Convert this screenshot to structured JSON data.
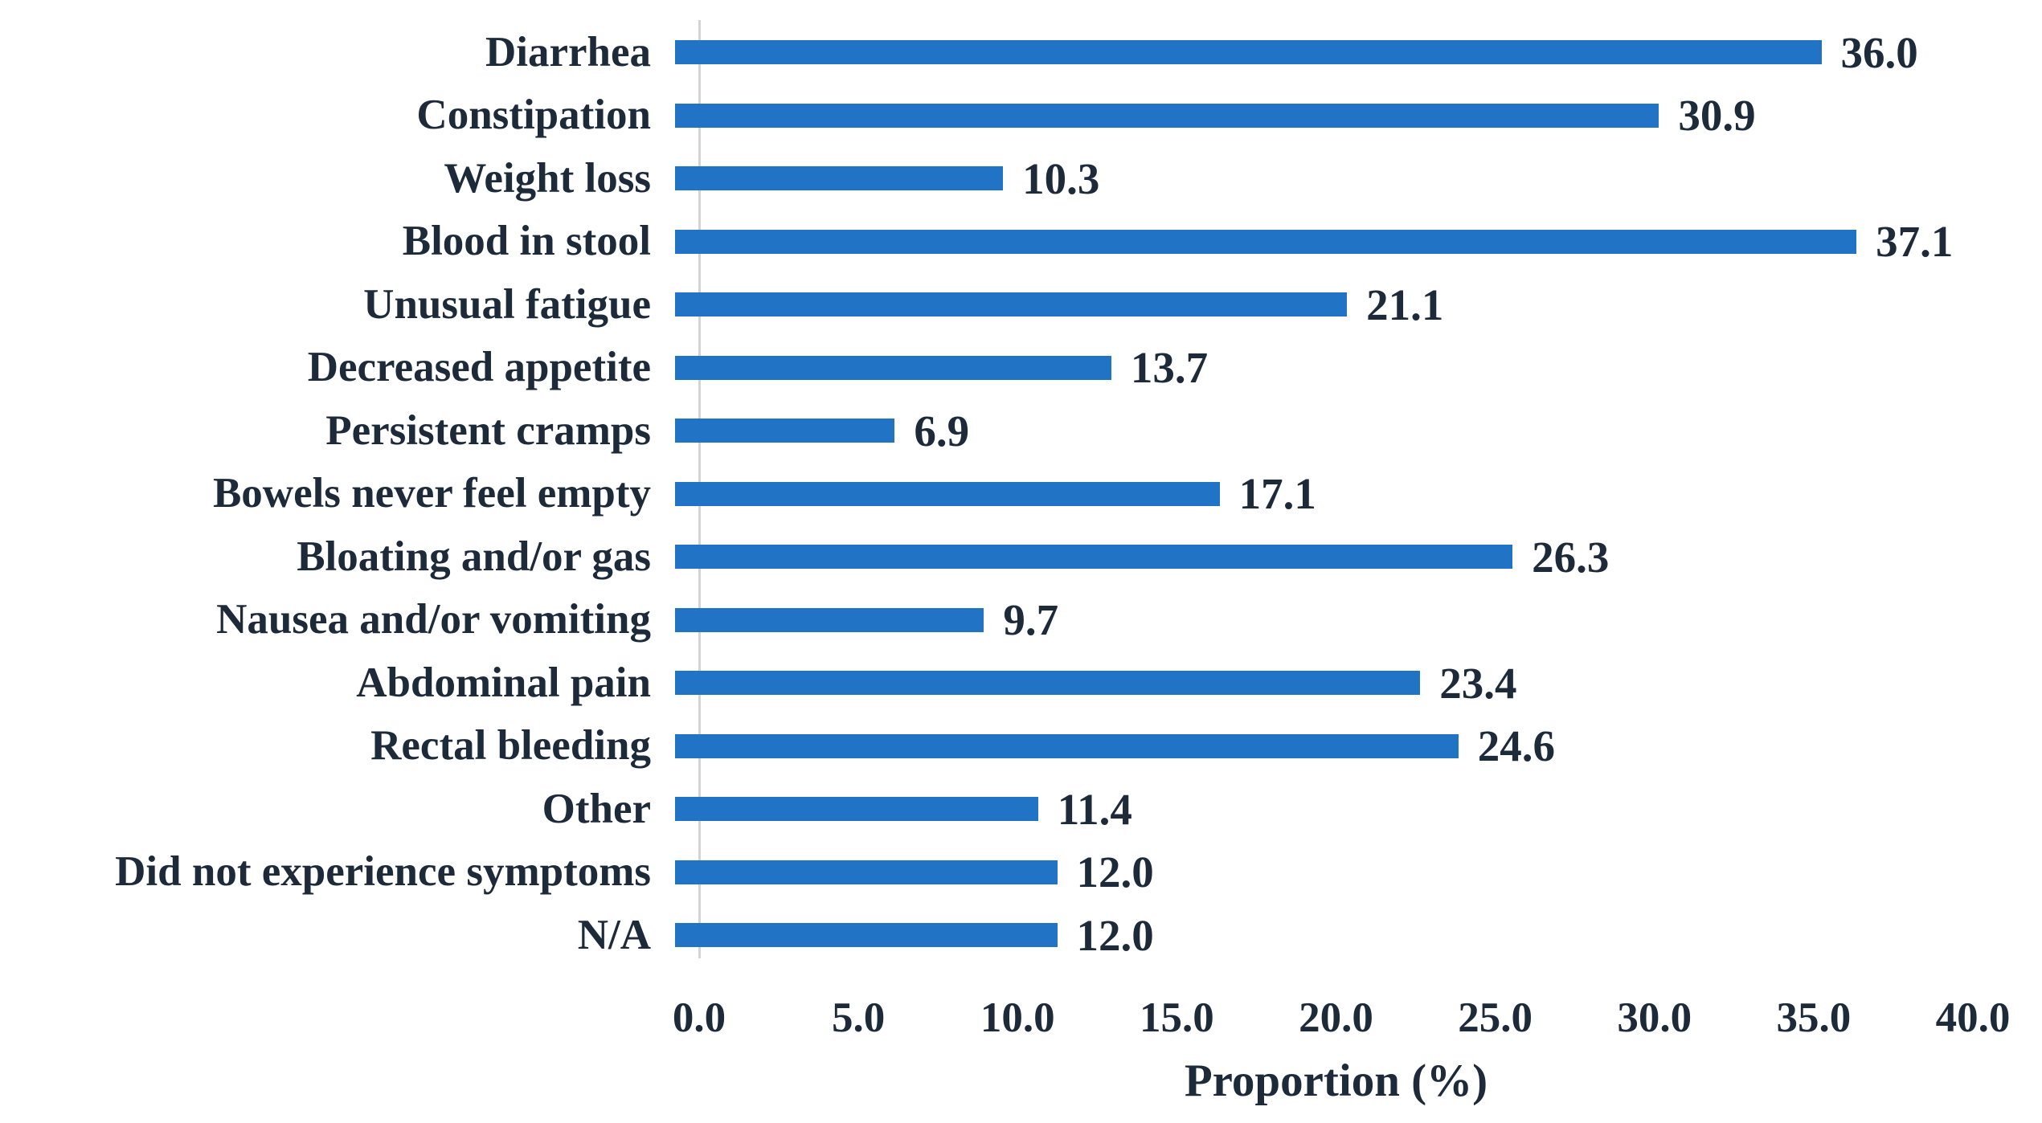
{
  "chart_data": {
    "type": "bar",
    "orientation": "horizontal",
    "title": "",
    "xlabel": "Proportion (%)",
    "ylabel": "",
    "xlim": [
      0,
      40
    ],
    "grid": false,
    "legend": false,
    "categories": [
      "Diarrhea",
      "Constipation",
      "Weight loss",
      "Blood in stool",
      "Unusual fatigue",
      "Decreased appetite",
      "Persistent cramps",
      "Bowels never feel empty",
      "Bloating and/or gas",
      "Nausea and/or vomiting",
      "Abdominal pain",
      "Rectal bleeding",
      "Other",
      "Did not experience symptoms",
      "N/A"
    ],
    "values": [
      36.0,
      30.9,
      10.3,
      37.1,
      21.1,
      13.7,
      6.9,
      17.1,
      26.3,
      9.7,
      23.4,
      24.6,
      11.4,
      12.0,
      12.0
    ],
    "value_labels": [
      "36.0",
      "30.9",
      "10.3",
      "37.1",
      "21.1",
      "13.7",
      "6.9",
      "17.1",
      "26.3",
      "9.7",
      "23.4",
      "24.6",
      "11.4",
      "12.0",
      "12.0"
    ],
    "x_ticks": [
      "0.0",
      "5.0",
      "10.0",
      "15.0",
      "20.0",
      "25.0",
      "30.0",
      "35.0",
      "40.0"
    ],
    "colors": {
      "bar": "#2173C6",
      "text": "#1D2A3A",
      "axis_line": "#D4D4D4",
      "background": "#FFFFFF"
    }
  }
}
